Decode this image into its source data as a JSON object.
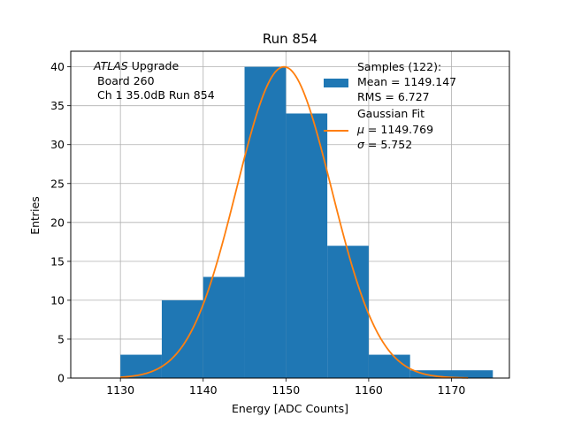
{
  "chart_data": {
    "type": "bar",
    "title": "Run 854",
    "xlabel": "Energy [ADC Counts]",
    "ylabel": "Entries",
    "xlim": [
      1124,
      1177
    ],
    "ylim": [
      0,
      42
    ],
    "xticks": [
      1130,
      1140,
      1150,
      1160,
      1170
    ],
    "yticks": [
      0,
      5,
      10,
      15,
      20,
      25,
      30,
      35,
      40
    ],
    "grid": true,
    "bins": [
      {
        "x0": 1130,
        "x1": 1135,
        "count": 3
      },
      {
        "x0": 1135,
        "x1": 1140,
        "count": 10
      },
      {
        "x0": 1140,
        "x1": 1145,
        "count": 13
      },
      {
        "x0": 1145,
        "x1": 1150,
        "count": 40
      },
      {
        "x0": 1150,
        "x1": 1155,
        "count": 34
      },
      {
        "x0": 1155,
        "x1": 1160,
        "count": 17
      },
      {
        "x0": 1160,
        "x1": 1165,
        "count": 3
      },
      {
        "x0": 1165,
        "x1": 1170,
        "count": 1
      },
      {
        "x0": 1170,
        "x1": 1175,
        "count": 1
      }
    ],
    "fit": {
      "type": "gaussian",
      "mu": 1149.769,
      "sigma": 5.752,
      "amplitude": 40,
      "x_range": [
        1130,
        1172
      ]
    },
    "annotation": {
      "line1_italic": "ATLAS",
      "line1_rest": " Upgrade",
      "line2": "Board 260",
      "line3": "Ch 1 35.0dB  Run 854"
    },
    "legend": {
      "position": "top-right",
      "samples": {
        "line1": "Samples (122):",
        "line2": "Mean = 1149.147",
        "line3": "RMS = 6.727"
      },
      "fit": {
        "line1": "Gaussian Fit",
        "mu_symbol": "μ",
        "mu_text": " = 1149.769",
        "sigma_symbol": "σ",
        "sigma_text": " = 5.752"
      }
    },
    "colors": {
      "bars": "#1f77b4",
      "fit_line": "#ff7f0e",
      "grid": "#b0b0b0"
    }
  }
}
